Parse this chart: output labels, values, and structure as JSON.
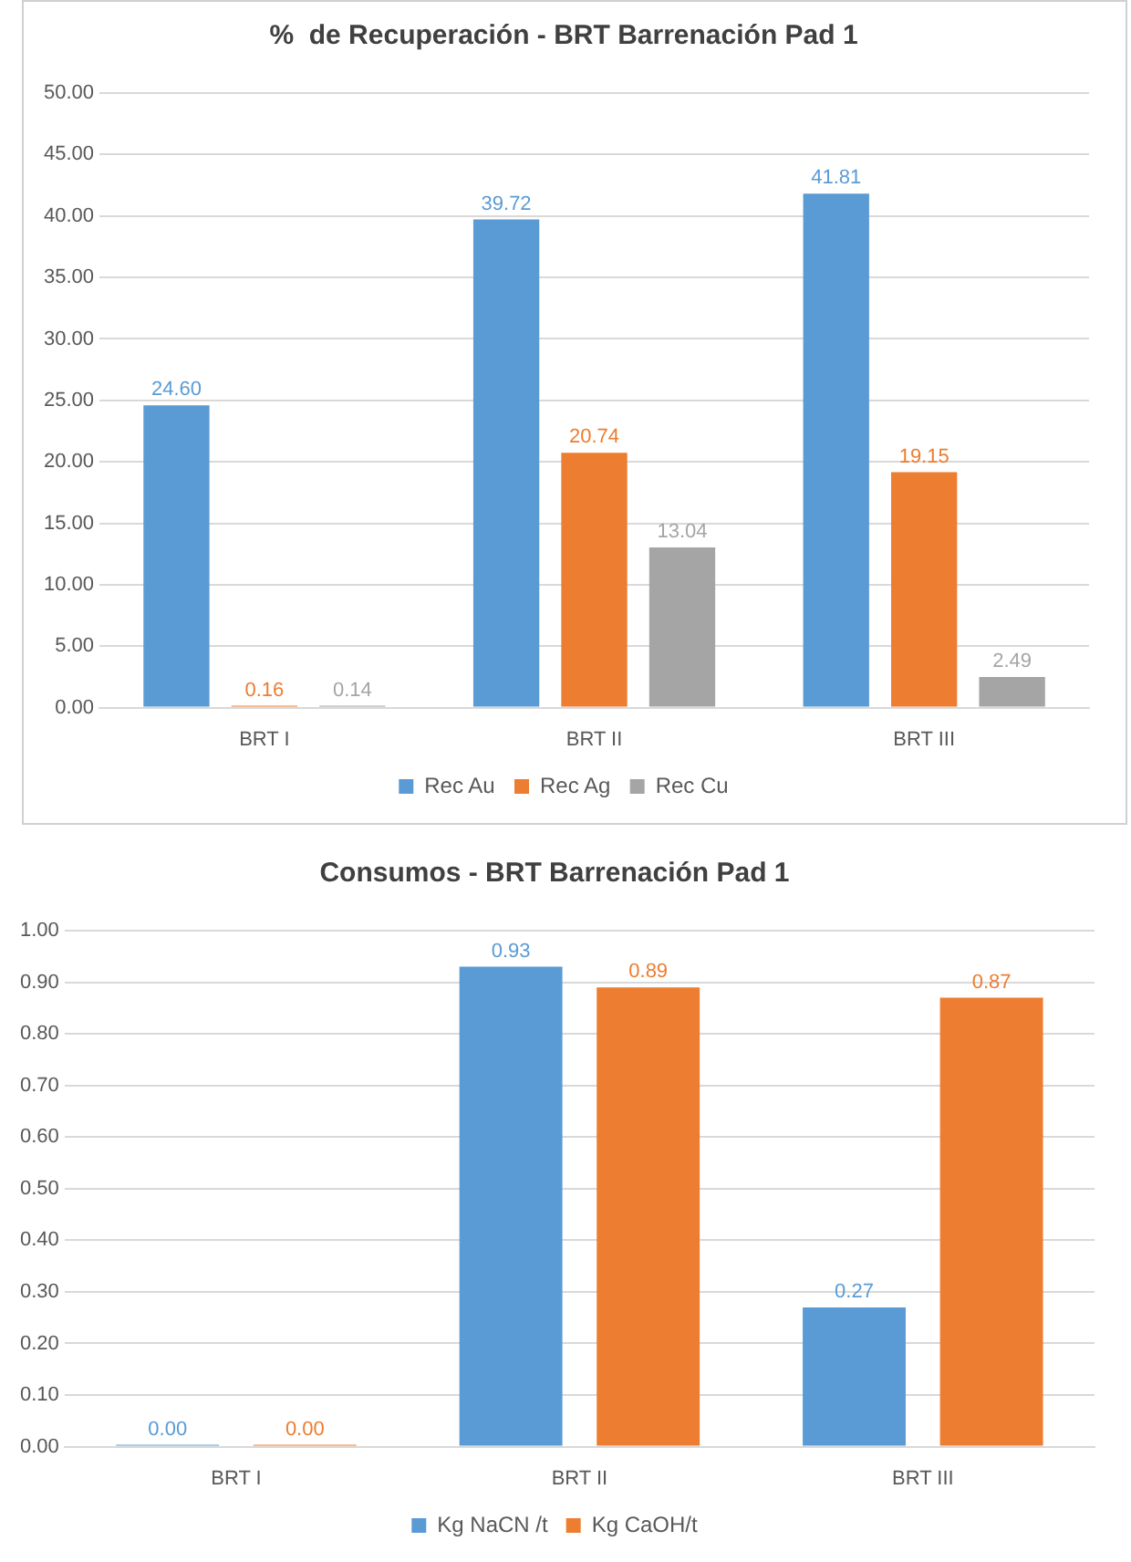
{
  "chart_data": [
    {
      "type": "bar",
      "title": "%  de Recuperación - BRT Barrenación Pad 1",
      "categories": [
        "BRT I",
        "BRT II",
        "BRT III"
      ],
      "series": [
        {
          "name": "Rec Au",
          "color": "#5b9bd5",
          "values": [
            24.6,
            39.72,
            41.81
          ],
          "value_labels": [
            "24.60",
            "39.72",
            "41.81"
          ]
        },
        {
          "name": "Rec Ag",
          "color": "#ed7d31",
          "values": [
            0.16,
            20.74,
            19.15
          ],
          "value_labels": [
            "0.16",
            "20.74",
            "19.15"
          ]
        },
        {
          "name": "Rec Cu",
          "color": "#a5a5a5",
          "values": [
            0.14,
            13.04,
            2.49
          ],
          "value_labels": [
            "0.14",
            "13.04",
            "2.49"
          ]
        }
      ],
      "ylim": [
        0,
        50
      ],
      "yticks": [
        {
          "value": 0,
          "label": "0.00"
        },
        {
          "value": 5,
          "label": "5.00"
        },
        {
          "value": 10,
          "label": "10.00"
        },
        {
          "value": 15,
          "label": "15.00"
        },
        {
          "value": 20,
          "label": "20.00"
        },
        {
          "value": 25,
          "label": "25.00"
        },
        {
          "value": 30,
          "label": "30.00"
        },
        {
          "value": 35,
          "label": "35.00"
        },
        {
          "value": 40,
          "label": "40.00"
        },
        {
          "value": 45,
          "label": "45.00"
        },
        {
          "value": 50,
          "label": "50.00"
        }
      ],
      "grid": "y",
      "legend": "bottom"
    },
    {
      "type": "bar",
      "title": "Consumos - BRT Barrenación Pad 1",
      "categories": [
        "BRT I",
        "BRT II",
        "BRT III"
      ],
      "series": [
        {
          "name": "Kg NaCN /t",
          "color": "#5b9bd5",
          "values": [
            0,
            0.93,
            0.27
          ],
          "value_labels": [
            "0.00",
            "0.93",
            "0.27"
          ]
        },
        {
          "name": "Kg CaOH/t",
          "color": "#ed7d31",
          "values": [
            0,
            0.89,
            0.87
          ],
          "value_labels": [
            "0.00",
            "0.89",
            "0.87"
          ]
        }
      ],
      "ylim": [
        0,
        1
      ],
      "yticks": [
        {
          "value": 0,
          "label": "0.00"
        },
        {
          "value": 0.1,
          "label": "0.10"
        },
        {
          "value": 0.2,
          "label": "0.20"
        },
        {
          "value": 0.3,
          "label": "0.30"
        },
        {
          "value": 0.4,
          "label": "0.40"
        },
        {
          "value": 0.5,
          "label": "0.50"
        },
        {
          "value": 0.6,
          "label": "0.60"
        },
        {
          "value": 0.7,
          "label": "0.70"
        },
        {
          "value": 0.8,
          "label": "0.80"
        },
        {
          "value": 0.9,
          "label": "0.90"
        },
        {
          "value": 1,
          "label": "1.00"
        }
      ],
      "grid": "y",
      "legend": "bottom"
    }
  ]
}
